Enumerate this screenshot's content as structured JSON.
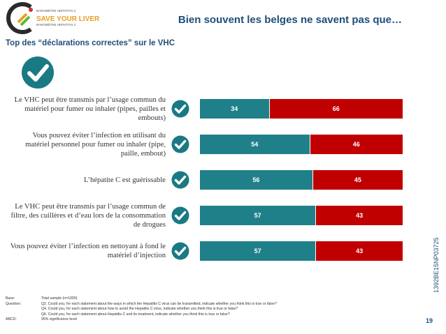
{
  "header": {
    "logo": {
      "line1": "BAROMÈTRE HEPATITIS C",
      "line2": "SAVE YOUR LIVER",
      "line3": "BAROMÈTRE HEPATITIS C"
    },
    "title": "Bien souvent les belges ne savent pas que…",
    "subtitle": "Top des “déclarations correctes” sur le VHC"
  },
  "colors": {
    "correct": "#20808a",
    "incorrect": "#c00000",
    "accent": "#1f4e79",
    "check": "#1a7a83"
  },
  "icons": {
    "big": "check-circle-icon",
    "row": "check-circle-icon"
  },
  "chart_data": {
    "type": "bar",
    "orientation": "horizontal",
    "stacked": true,
    "categories": [
      "Le VHC peut être transmis par l’usage commun du matériel pour fumer ou inhaler (pipes, pailles et embouts)",
      "Vous pouvez éviter l’infection en utilisant du matériel personnel pour fumer ou inhaler (pipe, paille, embout)",
      "L’hépatite C est guérissable",
      "Le VHC peut être transmis par l’usage commun de filtre, des cuillères et d’eau lors de la consommation de drogues",
      "Vous pouvez éviter l’infection en nettoyant à fond le matériel d’injection"
    ],
    "series": [
      {
        "values": [
          34,
          54,
          56,
          57,
          57
        ]
      },
      {
        "values": [
          66,
          46,
          45,
          43,
          43
        ]
      }
    ]
  },
  "side_code": "1392BE15NP03725",
  "footer": [
    {
      "key": "Base:",
      "text": "Total sample (n=1000)"
    },
    {
      "key": "Question:",
      "text": "Q2. Could you, for each statement about the ways in which the Hepatitis C virus can be transmitted, indicate whether you think this is true or false?"
    },
    {
      "key": "",
      "text": "Q4. Could you, for each statement about how to avoid the Hepatitis C virus, indicate whether you think this is true or false?"
    },
    {
      "key": "",
      "text": "Q6. Could you, for each statement about Hepatitis C and its treatment, indicate whether you think this is true or false?"
    },
    {
      "key": "ABCD:",
      "text": "95% significance level"
    }
  ],
  "page_number": "19"
}
